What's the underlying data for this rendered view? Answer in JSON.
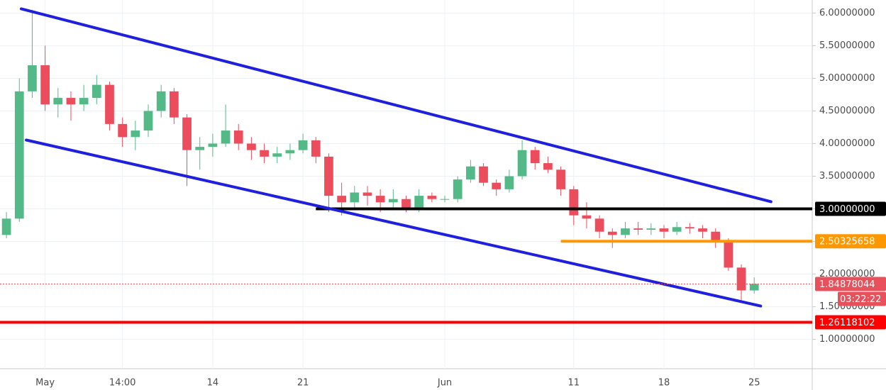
{
  "chart_data": {
    "type": "candlestick",
    "categories": [
      null,
      null,
      null,
      "May",
      null,
      null,
      null,
      null,
      null,
      "14:00",
      null,
      null,
      null,
      null,
      null,
      null,
      "14",
      null,
      null,
      null,
      null,
      null,
      null,
      "21",
      null,
      null,
      null,
      null,
      null,
      null,
      null,
      null,
      null,
      null,
      "Jun",
      null,
      null,
      null,
      null,
      null,
      null,
      null,
      null,
      null,
      "11",
      null,
      null,
      null,
      null,
      null,
      null,
      "18",
      null,
      null,
      null,
      null,
      null,
      null,
      "25",
      null,
      null,
      null,
      null
    ],
    "open": [
      2.6,
      2.85,
      4.8,
      5.2,
      4.6,
      4.7,
      4.6,
      4.7,
      4.9,
      4.3,
      4.1,
      4.2,
      4.5,
      4.8,
      4.4,
      3.9,
      3.95,
      4.0,
      4.2,
      4.0,
      3.9,
      3.8,
      3.85,
      3.9,
      4.05,
      3.8,
      3.2,
      3.1,
      3.25,
      3.2,
      3.1,
      3.15,
      3.0,
      3.2,
      3.15,
      3.15,
      3.45,
      3.65,
      3.4,
      3.3,
      3.5,
      3.9,
      3.7,
      3.6,
      3.3,
      2.9,
      2.85,
      2.65,
      2.6,
      2.7,
      2.68,
      2.7,
      2.65,
      2.72,
      2.7,
      2.65,
      2.5,
      2.1,
      1.75,
      null,
      null,
      null,
      null
    ],
    "high": [
      2.95,
      5.0,
      6.05,
      5.5,
      4.85,
      4.8,
      4.9,
      5.05,
      4.95,
      4.4,
      4.35,
      4.6,
      4.9,
      4.85,
      4.45,
      4.1,
      4.15,
      4.6,
      4.3,
      4.1,
      4.0,
      3.95,
      4.0,
      4.15,
      4.1,
      3.85,
      3.4,
      3.35,
      3.35,
      3.3,
      3.3,
      3.2,
      3.3,
      3.25,
      3.2,
      3.5,
      3.75,
      3.7,
      3.45,
      3.6,
      4.05,
      3.95,
      3.8,
      3.65,
      3.35,
      3.1,
      2.9,
      2.7,
      2.8,
      2.8,
      2.78,
      2.75,
      2.8,
      2.78,
      2.75,
      2.7,
      2.55,
      2.15,
      1.95,
      null,
      null,
      null,
      null
    ],
    "low": [
      2.55,
      2.8,
      4.7,
      4.5,
      4.4,
      4.35,
      4.5,
      4.6,
      4.2,
      3.95,
      3.9,
      4.1,
      4.4,
      4.3,
      3.35,
      3.6,
      3.8,
      3.95,
      3.9,
      3.75,
      3.7,
      3.7,
      3.75,
      3.85,
      3.7,
      2.95,
      2.9,
      3.0,
      3.05,
      2.95,
      3.0,
      2.95,
      2.95,
      3.1,
      3.1,
      3.1,
      3.4,
      3.35,
      3.2,
      3.25,
      3.45,
      3.6,
      3.55,
      3.2,
      2.75,
      2.7,
      2.55,
      2.4,
      2.55,
      2.6,
      2.6,
      2.55,
      2.6,
      2.62,
      2.55,
      2.4,
      2.05,
      1.6,
      1.7,
      null,
      null,
      null,
      null
    ],
    "close": [
      2.85,
      4.8,
      5.2,
      4.6,
      4.7,
      4.6,
      4.7,
      4.9,
      4.3,
      4.1,
      4.2,
      4.5,
      4.8,
      4.4,
      3.9,
      3.95,
      4.0,
      4.2,
      4.0,
      3.9,
      3.8,
      3.85,
      3.9,
      4.05,
      3.8,
      3.2,
      3.1,
      3.25,
      3.2,
      3.1,
      3.15,
      3.0,
      3.2,
      3.15,
      3.15,
      3.45,
      3.65,
      3.4,
      3.3,
      3.5,
      3.9,
      3.7,
      3.6,
      3.3,
      2.9,
      2.85,
      2.65,
      2.6,
      2.7,
      2.68,
      2.7,
      2.65,
      2.72,
      2.7,
      2.65,
      2.5,
      2.1,
      1.75,
      1.85,
      null,
      null,
      null,
      null
    ],
    "up_color": "#53b987",
    "down_color": "#eb4d5c",
    "ylim": [
      0.55,
      6.2
    ],
    "yticks": [
      {
        "value": 1.0,
        "label": "1.00000000"
      },
      {
        "value": 1.5,
        "label": "1.50000000"
      },
      {
        "value": 2.0,
        "label": "2.00000000"
      },
      {
        "value": 2.5,
        "label": "2.50000000"
      },
      {
        "value": 3.0,
        "label": "3.00000000"
      },
      {
        "value": 3.5,
        "label": "3.50000000"
      },
      {
        "value": 4.0,
        "label": "4.00000000"
      },
      {
        "value": 4.5,
        "label": "4.50000000"
      },
      {
        "value": 5.0,
        "label": "5.00000000"
      },
      {
        "value": 5.5,
        "label": "5.50000000"
      },
      {
        "value": 6.0,
        "label": "6.00000000"
      }
    ],
    "grid": true,
    "trendlines": [
      {
        "color": "#1f1fe0",
        "points": [
          [
            1.15,
            6.065
          ],
          [
            59.3,
            3.109
          ]
        ]
      },
      {
        "color": "#1f1fe0",
        "points": [
          [
            1.54,
            4.054
          ],
          [
            58.5,
            1.511
          ]
        ]
      }
    ],
    "levels": [
      {
        "value": 3.0,
        "label": "3.00000000",
        "color": "#000000",
        "start": 24
      },
      {
        "value": 2.50325658,
        "label": "2.50325658",
        "color": "#ff9800",
        "start": 43
      },
      {
        "value": 1.26118102,
        "label": "1.26118102",
        "color": "#ff0000",
        "start": 0
      }
    ],
    "current": {
      "value": 1.84878044,
      "label": "1.84878044",
      "countdown": "03:22:22",
      "color": "#e8505b"
    }
  }
}
